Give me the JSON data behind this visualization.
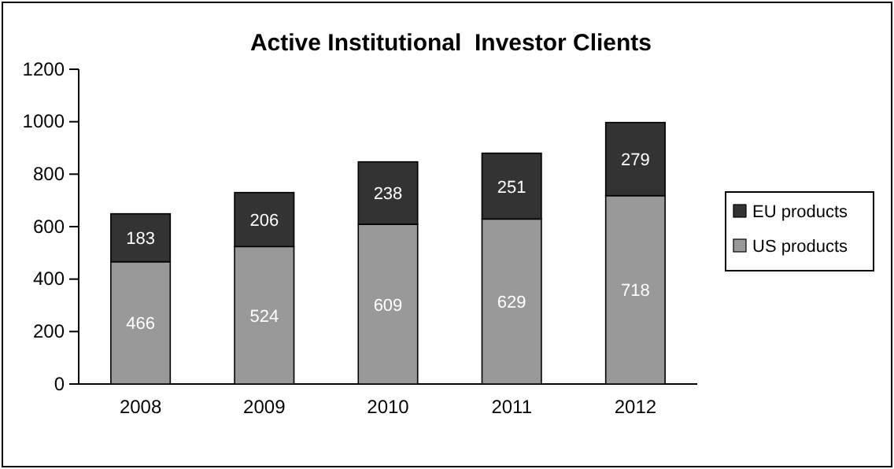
{
  "chart_data": {
    "type": "bar",
    "title": "Active Institutional  Investor Clients",
    "categories": [
      "2008",
      "2009",
      "2010",
      "2011",
      "2012"
    ],
    "series": [
      {
        "name": "US products",
        "color": "#999999",
        "values": [
          466,
          524,
          609,
          629,
          718
        ]
      },
      {
        "name": "EU products",
        "color": "#333333",
        "values": [
          183,
          206,
          238,
          251,
          279
        ]
      }
    ],
    "stacked": true,
    "ylim": [
      0,
      1200
    ],
    "yticks": [
      0,
      200,
      400,
      600,
      800,
      1000,
      1200
    ],
    "grid": false,
    "legend": "right",
    "data_labels": true
  }
}
